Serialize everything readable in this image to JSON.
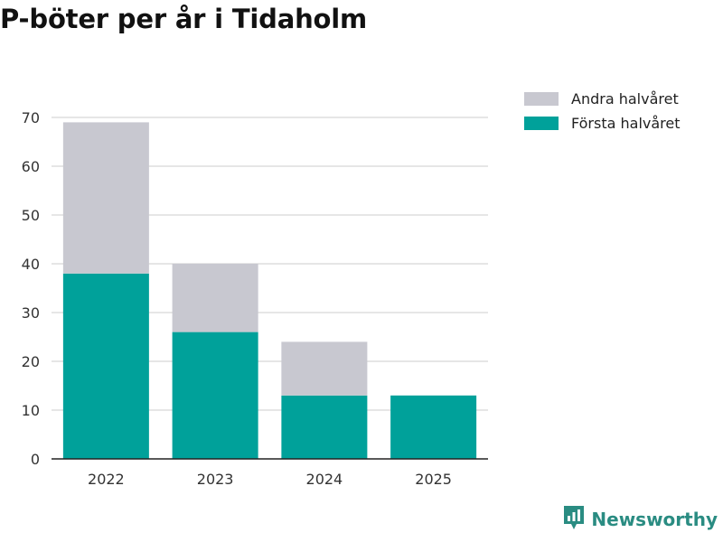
{
  "title": "P-böter per år i Tidaholm",
  "colors": {
    "first_half": "#00a19a",
    "second_half": "#c8c8d0",
    "grid": "#dddddd",
    "axis": "#222222",
    "brand": "#2a8c82"
  },
  "legend": {
    "items": [
      {
        "label": "Andra halvåret",
        "color": "#c8c8d0"
      },
      {
        "label": "Första halvåret",
        "color": "#00a19a"
      }
    ]
  },
  "brand": {
    "name": "Newsworthy",
    "icon": "newsworthy-logo-icon"
  },
  "chart_data": {
    "type": "bar",
    "stacked": true,
    "title": "P-böter per år i Tidaholm",
    "xlabel": "",
    "ylabel": "",
    "categories": [
      "2022",
      "2023",
      "2024",
      "2025"
    ],
    "series": [
      {
        "name": "Första halvåret",
        "values": [
          38,
          26,
          13,
          13
        ]
      },
      {
        "name": "Andra halvåret",
        "values": [
          31,
          14,
          11,
          0
        ]
      }
    ],
    "ylim": [
      0,
      70
    ],
    "yticks": [
      0,
      10,
      20,
      30,
      40,
      50,
      60,
      70
    ],
    "grid": true,
    "legend_position": "top-right"
  }
}
